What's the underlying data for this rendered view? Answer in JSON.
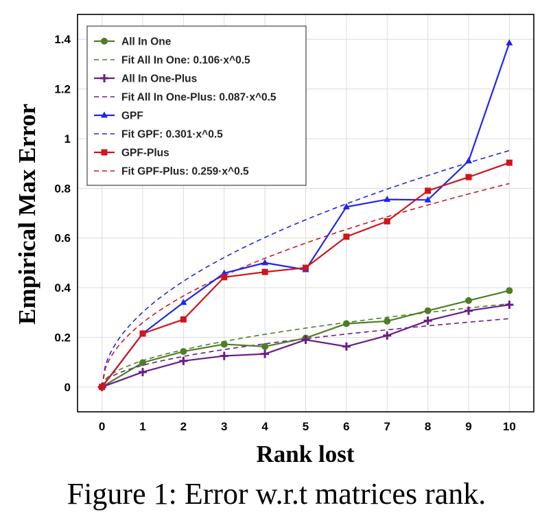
{
  "chart_data": {
    "type": "line",
    "title": "",
    "xlabel": "Rank lost",
    "ylabel": "Empirical Max Error",
    "xlim": [
      -0.6,
      10.6
    ],
    "ylim": [
      -0.1,
      1.5
    ],
    "x": [
      0,
      1,
      2,
      3,
      4,
      5,
      6,
      7,
      8,
      9,
      10
    ],
    "x_ticks": [
      0,
      1,
      2,
      3,
      4,
      5,
      6,
      7,
      8,
      9,
      10
    ],
    "y_ticks": [
      0,
      0.2,
      0.4,
      0.6,
      0.8,
      1,
      1.2,
      1.4
    ],
    "y_tick_labels": [
      "0",
      "0.2",
      "0.4",
      "0.6",
      "0.8",
      "1",
      "1.2",
      "1.4"
    ],
    "grid": true,
    "legend_position": "top-left",
    "series": [
      {
        "name": "All In One",
        "color": "#4e7d25",
        "marker": "circle",
        "values": [
          0.0,
          0.098,
          0.143,
          0.172,
          0.163,
          0.197,
          0.255,
          0.265,
          0.307,
          0.348,
          0.388
        ],
        "fit": {
          "name": "Fit All In One: 0.106·x^0.5",
          "coef": 0.106,
          "exp": 0.5
        }
      },
      {
        "name": "All In One-Plus",
        "color": "#6a1a8a",
        "marker": "plus",
        "values": [
          0.0,
          0.06,
          0.105,
          0.125,
          0.133,
          0.19,
          0.163,
          0.207,
          0.267,
          0.307,
          0.331
        ],
        "fit": {
          "name": "Fit All In One-Plus: 0.087·x^0.5",
          "coef": 0.087,
          "exp": 0.5
        }
      },
      {
        "name": "GPF",
        "color": "#1f23f0",
        "marker": "triangle",
        "values": [
          0.0,
          0.215,
          0.34,
          0.458,
          0.5,
          0.472,
          0.725,
          0.755,
          0.753,
          0.91,
          1.385
        ],
        "fit": {
          "name": "Fit GPF: 0.301·x^0.5",
          "coef": 0.301,
          "exp": 0.5
        }
      },
      {
        "name": "GPF-Plus",
        "color": "#d0141c",
        "marker": "square",
        "values": [
          0.0,
          0.215,
          0.272,
          0.442,
          0.463,
          0.48,
          0.605,
          0.667,
          0.79,
          0.845,
          0.903
        ],
        "fit": {
          "name": "Fit GPF-Plus: 0.259·x^0.5",
          "coef": 0.259,
          "exp": 0.5
        }
      }
    ]
  },
  "caption": "Figure 1: Error w.r.t matrices rank."
}
